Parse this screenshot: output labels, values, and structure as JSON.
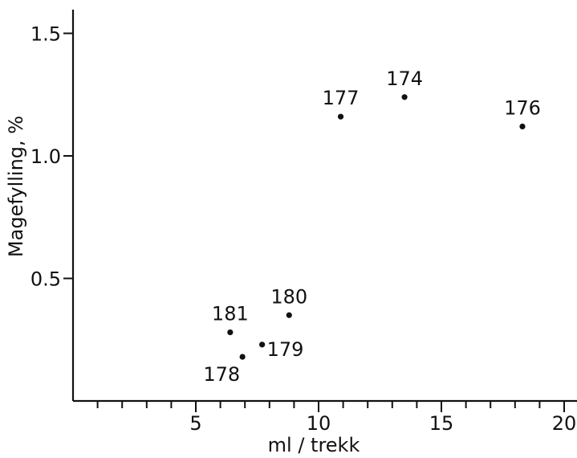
{
  "chart_data": {
    "type": "scatter",
    "title": "",
    "xlabel": "ml / trekk",
    "ylabel": "Magefylling, %",
    "xlim": [
      0,
      21
    ],
    "ylim": [
      0,
      1.6
    ],
    "grid": false,
    "x_ticks": [
      {
        "value": 5,
        "label": "5"
      },
      {
        "value": 10,
        "label": "10"
      },
      {
        "value": 15,
        "label": "15"
      },
      {
        "value": 20,
        "label": "20"
      }
    ],
    "x_minor_ticks": [
      1,
      2,
      3,
      4,
      6,
      7,
      8,
      9,
      11,
      12,
      13,
      14,
      16,
      17,
      18,
      19
    ],
    "y_ticks": [
      {
        "value": 0.5,
        "label": "0.5"
      },
      {
        "value": 1.0,
        "label": "1.0"
      },
      {
        "value": 1.5,
        "label": "1.5"
      }
    ],
    "points": [
      {
        "label": "174",
        "x": 13.5,
        "y": 1.24,
        "label_pos": "above"
      },
      {
        "label": "176",
        "x": 18.3,
        "y": 1.12,
        "label_pos": "above"
      },
      {
        "label": "177",
        "x": 10.9,
        "y": 1.16,
        "label_pos": "above"
      },
      {
        "label": "180",
        "x": 8.8,
        "y": 0.35,
        "label_pos": "above"
      },
      {
        "label": "181",
        "x": 6.4,
        "y": 0.28,
        "label_pos": "above"
      },
      {
        "label": "179",
        "x": 7.7,
        "y": 0.23,
        "label_pos": "right"
      },
      {
        "label": "178",
        "x": 6.9,
        "y": 0.18,
        "label_pos": "below-left"
      }
    ]
  }
}
